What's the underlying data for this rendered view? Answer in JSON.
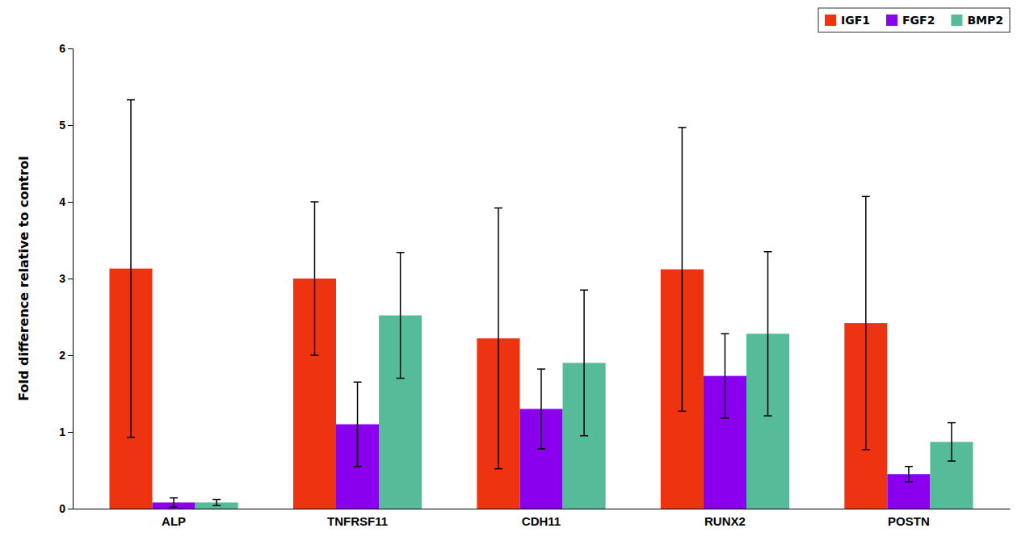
{
  "chart_data": {
    "type": "bar",
    "categories": [
      "ALP",
      "TNFRSF11",
      "CDH11",
      "RUNX2",
      "POSTN"
    ],
    "series": [
      {
        "name": "IGF1",
        "color": "#EE3311",
        "values": [
          3.13,
          3.0,
          2.22,
          3.12,
          2.42
        ],
        "errors": [
          2.2,
          1.0,
          1.7,
          1.85,
          1.65
        ]
      },
      {
        "name": "FGF2",
        "color": "#8800EE",
        "values": [
          0.08,
          1.1,
          1.3,
          1.73,
          0.45
        ],
        "errors": [
          0.06,
          0.55,
          0.52,
          0.55,
          0.1
        ]
      },
      {
        "name": "BMP2",
        "color": "#55BB99",
        "values": [
          0.08,
          2.52,
          1.9,
          2.28,
          0.87
        ],
        "errors": [
          0.04,
          0.82,
          0.95,
          1.07,
          0.25
        ]
      }
    ],
    "ylabel": "Fold difference relative to control",
    "ylim": [
      0,
      6
    ],
    "yticks": [
      0,
      1,
      2,
      3,
      4,
      5,
      6
    ],
    "legend": "upper right",
    "grid": false
  }
}
